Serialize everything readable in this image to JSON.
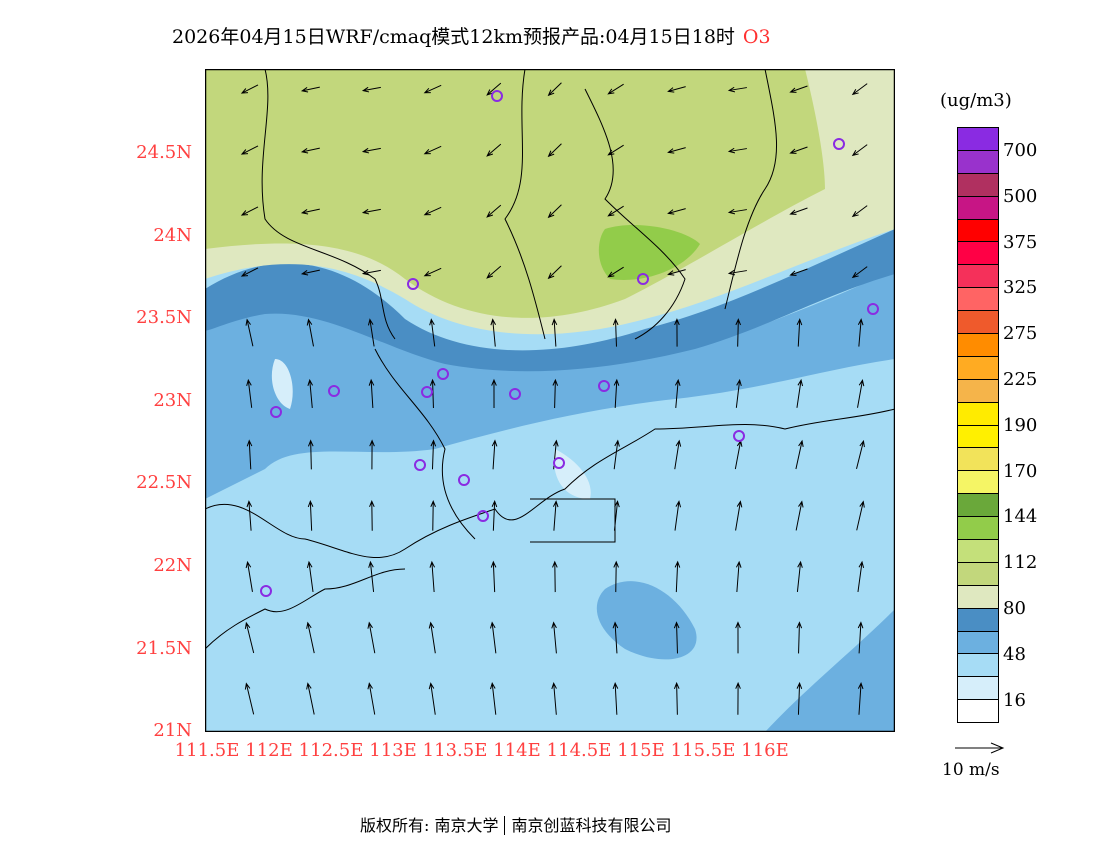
{
  "title": {
    "text": "2026年04月15日WRF/cmaq模式12km预报产品:04月15日18时",
    "species": "O3"
  },
  "lat_labels": [
    "24.5N",
    "24N",
    "23.5N",
    "23N",
    "22.5N",
    "22N",
    "21.5N",
    "21N"
  ],
  "lon_labels": [
    "111.5E",
    "112E",
    "112.5E",
    "113E",
    "113.5E",
    "114E",
    "114.5E",
    "115E",
    "115.5E",
    "116E"
  ],
  "colorbar": {
    "unit": "(ug/m3)",
    "colors": [
      "#8a2be2",
      "#9932cc",
      "#b03060",
      "#c71585",
      "#ff0000",
      "#ff0045",
      "#f5305a",
      "#ff6464",
      "#ef5a2c",
      "#ff8c00",
      "#ffab22",
      "#f5b44a",
      "#ffeb00",
      "#fff000",
      "#f2e35a",
      "#f5f565",
      "#6aa83a",
      "#92cc4a",
      "#c4e07a",
      "#c2d77c",
      "#dfe8c0",
      "#4a8ec4",
      "#6cb0e0",
      "#a6dcf5",
      "#d6eefa",
      "#ffffff"
    ],
    "labels": [
      "700",
      "500",
      "375",
      "325",
      "275",
      "225",
      "190",
      "170",
      "144",
      "112",
      "80",
      "48",
      "16"
    ]
  },
  "wind_ref": "10 m/s",
  "footer": {
    "left": "版权所有: 南京大学",
    "right": "南京创蓝科技有限公司"
  }
}
